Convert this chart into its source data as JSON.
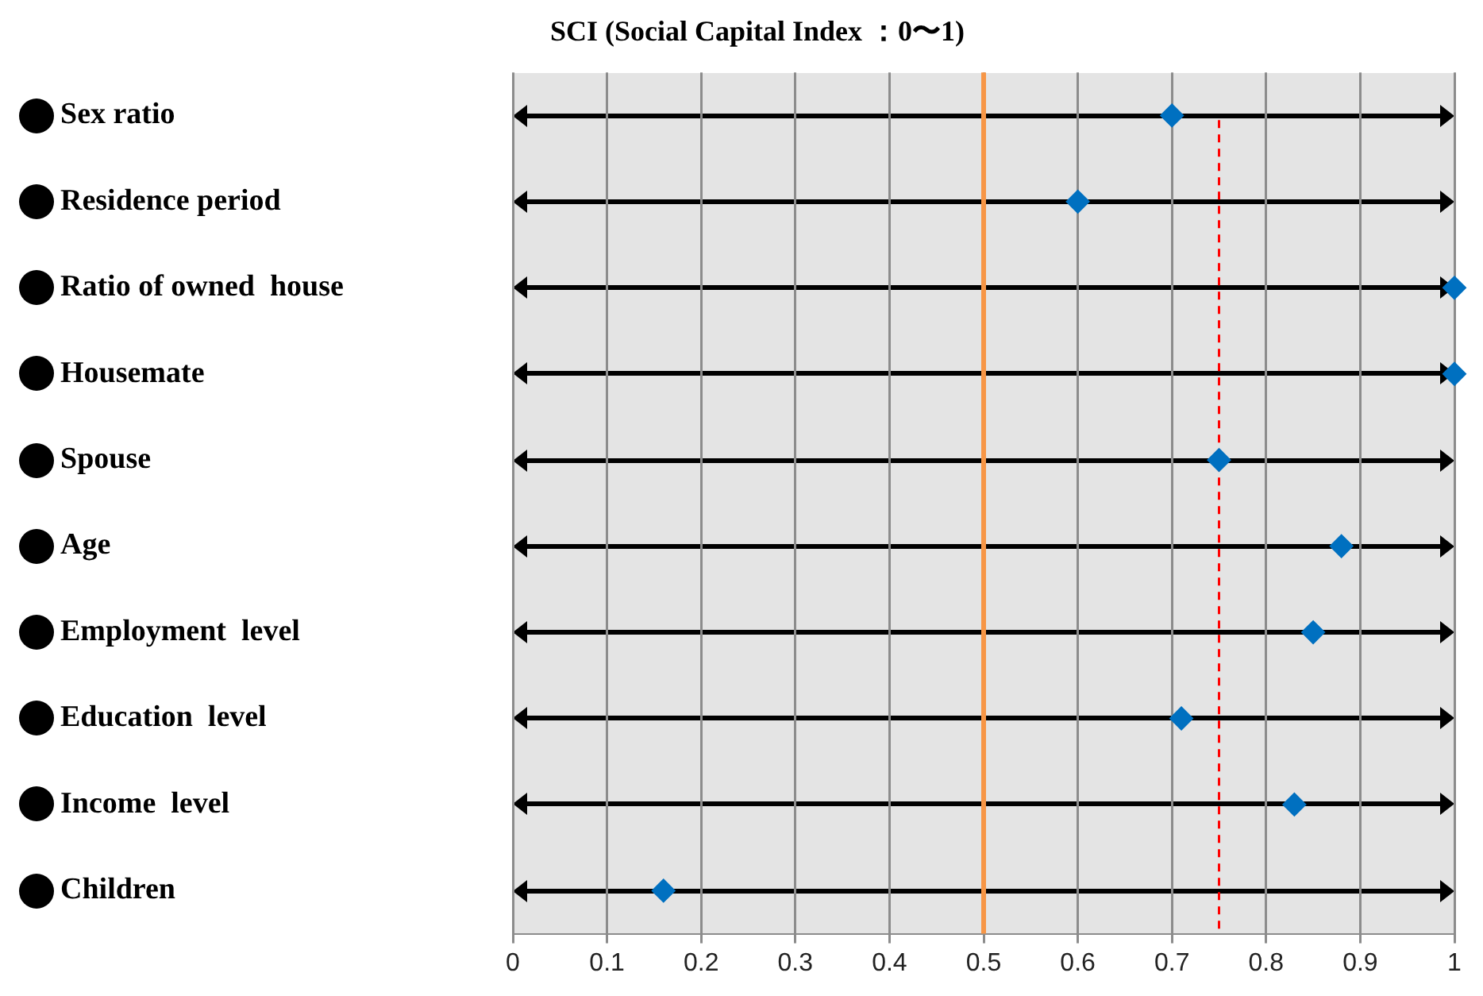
{
  "chart_data": {
    "type": "scatter",
    "orientation": "horizontal",
    "title": "SCI (Social Capital Index ：0〜1)",
    "categories": [
      "Sex ratio",
      "Residence period",
      "Ratio of owned  house",
      "Housemate",
      "Spouse",
      "Age",
      "Employment  level",
      "Education  level",
      "Income  level",
      "Children"
    ],
    "series": [
      {
        "color": "#0070c0",
        "values": [
          0.7,
          0.6,
          1,
          1,
          0.75,
          0.88,
          0.85,
          0.71,
          0.83,
          0.16
        ]
      }
    ],
    "xlim": [
      0,
      1
    ],
    "xticks": [
      0,
      0.1,
      0.2,
      0.3,
      0.4,
      0.5,
      0.6,
      0.7,
      0.8,
      0.9,
      1
    ],
    "ref_lines": [
      {
        "axis": "x",
        "value": 0.5,
        "color": "#f79646",
        "line_style": "solid"
      },
      {
        "axis": "x",
        "value": 0.75,
        "color": "#ff0000",
        "line_style": "dashed"
      }
    ],
    "grid": "x",
    "legend": false,
    "marker": "diamond"
  }
}
